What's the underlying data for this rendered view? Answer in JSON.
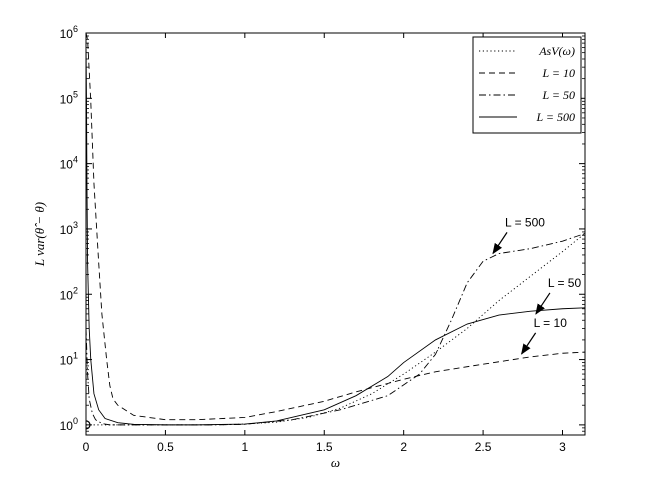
{
  "chart_data": {
    "type": "line",
    "title": "",
    "xlabel": "ω",
    "ylabel": "L var(θ̂ − θ)",
    "xlim": [
      0,
      3.1416
    ],
    "ylim": [
      0.7,
      1000000
    ],
    "yscale": "log",
    "grid": false,
    "legend_position": "top-right",
    "x_ticks": [
      {
        "value": 0,
        "label": "0"
      },
      {
        "value": 0.5,
        "label": "0.5"
      },
      {
        "value": 1,
        "label": "1"
      },
      {
        "value": 1.5,
        "label": "1.5"
      },
      {
        "value": 2,
        "label": "2"
      },
      {
        "value": 2.5,
        "label": "2.5"
      },
      {
        "value": 3,
        "label": "3"
      }
    ],
    "y_ticks": [
      {
        "value": 1,
        "base": "10",
        "exp": "0"
      },
      {
        "value": 10,
        "base": "10",
        "exp": "1"
      },
      {
        "value": 100,
        "base": "10",
        "exp": "2"
      },
      {
        "value": 1000,
        "base": "10",
        "exp": "3"
      },
      {
        "value": 10000,
        "base": "10",
        "exp": "4"
      },
      {
        "value": 100000,
        "base": "10",
        "exp": "5"
      },
      {
        "value": 1000000,
        "base": "10",
        "exp": "6"
      }
    ],
    "series": [
      {
        "name": "AsV(ω)",
        "style": "dotted",
        "x": [
          0,
          0.05,
          0.1,
          0.2,
          0.3,
          0.5,
          0.7,
          0.9,
          1.0,
          1.2,
          1.4,
          1.6,
          1.8,
          2.0,
          2.2,
          2.4,
          2.6,
          2.8,
          3.0,
          3.14
        ],
        "y": [
          1.0,
          1.0,
          1.0,
          1.0,
          1.0,
          1.0,
          1.0,
          1.01,
          1.03,
          1.1,
          1.3,
          1.8,
          3.0,
          6.0,
          13,
          30,
          80,
          190,
          450,
          850
        ]
      },
      {
        "name": "L = 10",
        "style": "dashed",
        "x": [
          0.0,
          0.01,
          0.03,
          0.05,
          0.08,
          0.1,
          0.13,
          0.15,
          0.17,
          0.2,
          0.3,
          0.5,
          0.7,
          1.0,
          1.2,
          1.5,
          1.7,
          2.0,
          2.2,
          2.5,
          2.8,
          3.0,
          3.14
        ],
        "y": [
          1000000,
          800000,
          90000,
          5000,
          300,
          50,
          10,
          4.0,
          2.5,
          2.0,
          1.4,
          1.2,
          1.2,
          1.3,
          1.6,
          2.3,
          3.2,
          5.0,
          6.5,
          8.5,
          11,
          12.5,
          13
        ]
      },
      {
        "name": "L = 50",
        "style": "dashdot",
        "x": [
          0.0,
          0.01,
          0.02,
          0.04,
          0.06,
          0.1,
          0.15,
          0.3,
          0.5,
          0.8,
          1.0,
          1.3,
          1.6,
          1.9,
          2.1,
          2.2,
          2.3,
          2.4,
          2.5,
          2.6,
          2.8,
          3.0,
          3.14
        ],
        "y": [
          30,
          6,
          2.5,
          1.5,
          1.2,
          1.05,
          1.0,
          1.0,
          1.0,
          1.0,
          1.02,
          1.2,
          1.7,
          2.8,
          6,
          12,
          40,
          150,
          320,
          420,
          500,
          650,
          850
        ]
      },
      {
        "name": "L = 500",
        "style": "solid",
        "x": [
          0.0,
          0.003,
          0.006,
          0.01,
          0.02,
          0.03,
          0.05,
          0.08,
          0.12,
          0.2,
          0.3,
          0.5,
          0.7,
          1.0,
          1.2,
          1.5,
          1.7,
          1.9,
          2.0,
          2.2,
          2.4,
          2.6,
          2.8,
          3.0,
          3.14
        ],
        "y": [
          700000,
          100000,
          5000,
          300,
          30,
          10,
          3.0,
          1.7,
          1.25,
          1.08,
          1.02,
          1.0,
          1.0,
          1.03,
          1.15,
          1.7,
          2.8,
          5.5,
          9,
          20,
          35,
          48,
          55,
          60,
          62
        ]
      }
    ],
    "annotations": [
      {
        "label": "L = 500",
        "x": 2.55,
        "y": 380
      },
      {
        "label": "L = 50",
        "x": 2.82,
        "y": 45
      },
      {
        "label": "L = 10",
        "x": 2.73,
        "y": 11
      }
    ],
    "marker": {
      "shape": "circle",
      "x": 0,
      "y": 1.0
    }
  }
}
